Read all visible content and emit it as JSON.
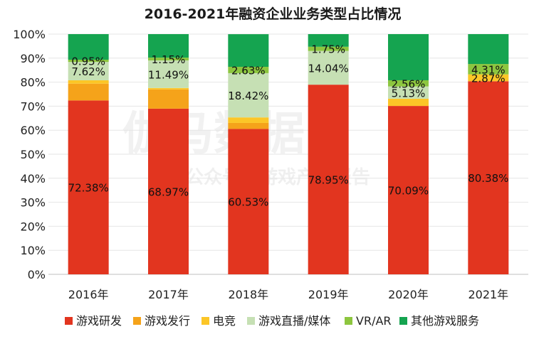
{
  "chart_data": {
    "type": "bar",
    "stacked": true,
    "title": "2016-2021年融资企业业务类型占比情况",
    "categories": [
      "2016年",
      "2017年",
      "2018年",
      "2019年",
      "2020年",
      "2021年"
    ],
    "ylim": [
      0,
      100
    ],
    "yticks": [
      "0%",
      "10%",
      "20%",
      "30%",
      "40%",
      "50%",
      "60%",
      "70%",
      "80%",
      "90%",
      "100%"
    ],
    "legend_position": "bottom",
    "series": [
      {
        "name": "游戏研发",
        "color": "#e2351f",
        "values": [
          72.38,
          68.97,
          60.53,
          78.95,
          70.09,
          80.38
        ],
        "labels": [
          "72.38%",
          "68.97%",
          "60.53%",
          "78.95%",
          "70.09%",
          "80.38%"
        ]
      },
      {
        "name": "游戏发行",
        "color": "#f5a31a",
        "values": [
          7.0,
          8.0,
          2.5,
          0,
          0,
          0
        ],
        "labels": [
          "",
          "",
          "",
          "",
          "",
          ""
        ]
      },
      {
        "name": "电竞",
        "color": "#fcc627",
        "values": [
          1.4,
          0.6,
          2.3,
          0,
          3.0,
          2.87
        ],
        "labels": [
          "",
          "",
          "",
          "",
          "",
          "2.87%"
        ]
      },
      {
        "name": "游戏直播/媒体",
        "color": "#c6e0b4",
        "values": [
          7.62,
          11.49,
          18.42,
          14.04,
          5.13,
          0
        ],
        "labels": [
          "7.62%",
          "11.49%",
          "18.42%",
          "14.04%",
          "5.13%",
          ""
        ]
      },
      {
        "name": "VR/AR",
        "color": "#8dc63f",
        "values": [
          0.95,
          1.15,
          2.63,
          1.75,
          2.56,
          4.31
        ],
        "labels": [
          "0.95%",
          "1.15%",
          "2.63%",
          "1.75%",
          "2.56%",
          "4.31%"
        ]
      },
      {
        "name": "其他游戏服务",
        "color": "#15a450",
        "values": [
          10.65,
          9.79,
          13.59,
          5.26,
          19.22,
          12.44
        ],
        "labels": [
          "",
          "",
          "",
          "",
          "",
          ""
        ]
      }
    ]
  },
  "watermark": {
    "main": "伽马数据",
    "sub": "公众号：游戏产业报告"
  }
}
